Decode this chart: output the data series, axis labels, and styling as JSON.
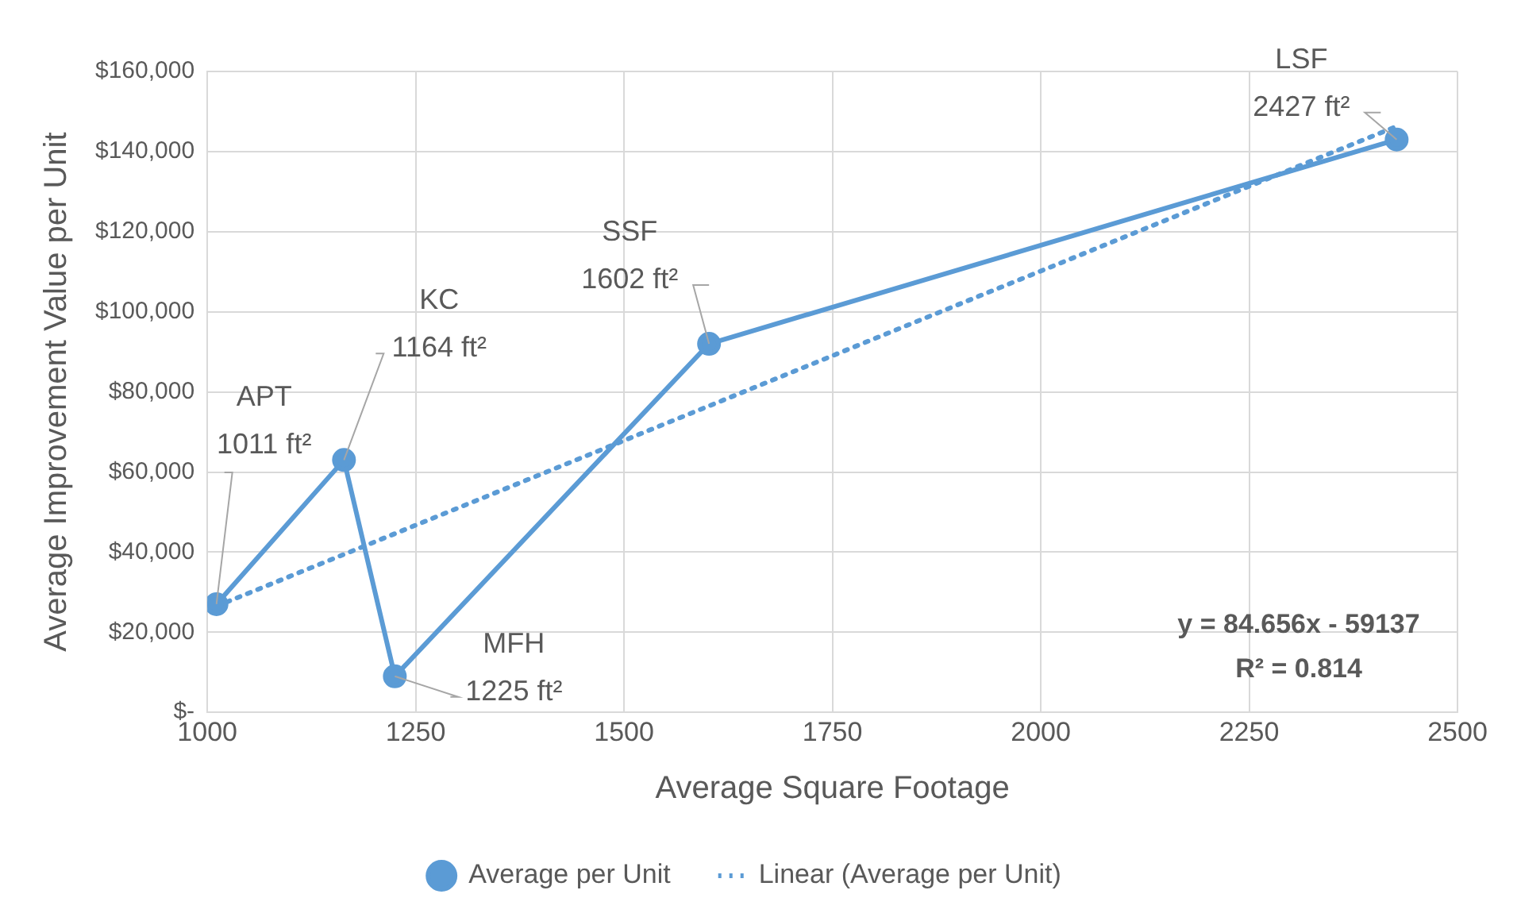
{
  "chart_data": {
    "type": "line",
    "xlabel": "Average Square Footage",
    "ylabel": "Average Improvement Value per Unit",
    "xlim": [
      1000,
      2500
    ],
    "xticks": [
      1000,
      1250,
      1500,
      1750,
      2000,
      2250,
      2500
    ],
    "ylim": [
      0,
      160000
    ],
    "yticks": [
      {
        "value": 0,
        "label": "$-"
      },
      {
        "value": 20000,
        "label": "$20,000"
      },
      {
        "value": 40000,
        "label": "$40,000"
      },
      {
        "value": 60000,
        "label": "$60,000"
      },
      {
        "value": 80000,
        "label": "$80,000"
      },
      {
        "value": 100000,
        "label": "$100,000"
      },
      {
        "value": 120000,
        "label": "$120,000"
      },
      {
        "value": 140000,
        "label": "$140,000"
      },
      {
        "value": 160000,
        "label": "$160,000"
      }
    ],
    "x": [
      1011,
      1164,
      1225,
      1602,
      2427
    ],
    "series": [
      {
        "name": "Average per Unit",
        "color": "#5b9bd5",
        "values": [
          27000,
          63000,
          9000,
          92000,
          143000
        ],
        "marker": "circle",
        "line_style": "solid"
      },
      {
        "name": "Linear (Average per Unit)",
        "color": "#5b9bd5",
        "x": [
          1011,
          2427
        ],
        "values": [
          26500,
          146300
        ],
        "marker": "none",
        "line_style": "dotted"
      }
    ],
    "annotations": [
      {
        "text": "APT\n1011 ft²",
        "x": 1011,
        "y": 27000
      },
      {
        "text": "KC\n1164 ft²",
        "x": 1164,
        "y": 63000
      },
      {
        "text": "MFH\n1225 ft²",
        "x": 1225,
        "y": 9000
      },
      {
        "text": "SSF\n1602 ft²",
        "x": 1602,
        "y": 92000
      },
      {
        "text": "LSF\n2427 ft²",
        "x": 2427,
        "y": 143000
      },
      "y = 84.656x - 59137",
      "R² = 0.814"
    ],
    "grid": true,
    "legend": "bottom"
  }
}
